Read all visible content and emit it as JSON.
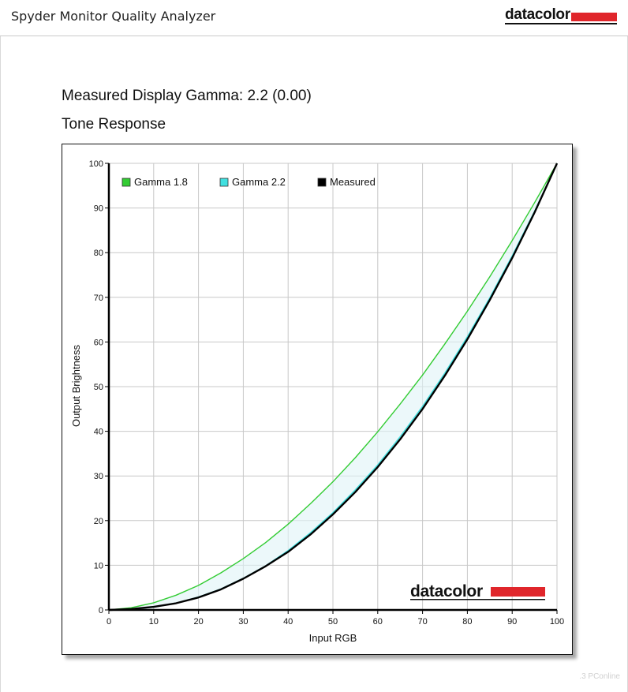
{
  "app": {
    "title": "Spyder Monitor Quality Analyzer",
    "brand": "datacolor"
  },
  "report": {
    "gamma_heading": "Measured Display Gamma: 2.2 (0.00)",
    "section_title": "Tone Response"
  },
  "chart_data": {
    "type": "line",
    "xlabel": "Input RGB",
    "ylabel": "Output Brightness",
    "xlim": [
      0,
      100
    ],
    "ylim": [
      0,
      100
    ],
    "xticks": [
      0,
      10,
      20,
      30,
      40,
      50,
      60,
      70,
      80,
      90,
      100
    ],
    "yticks": [
      0,
      10,
      20,
      30,
      40,
      50,
      60,
      70,
      80,
      90,
      100
    ],
    "grid": true,
    "legend_position": "top-left",
    "watermark_logo": "datacolor",
    "series": [
      {
        "name": "Gamma 1.8",
        "color": "#33cc33",
        "x": [
          0,
          5,
          10,
          15,
          20,
          25,
          30,
          35,
          40,
          45,
          50,
          55,
          60,
          65,
          70,
          75,
          80,
          85,
          90,
          95,
          100
        ],
        "values": [
          0,
          0.5,
          1.6,
          3.3,
          5.5,
          8.3,
          11.5,
          15.1,
          19.2,
          23.8,
          28.7,
          34.1,
          39.9,
          46.1,
          52.6,
          59.6,
          66.9,
          74.6,
          82.7,
          91.2,
          100
        ]
      },
      {
        "name": "Gamma 2.2",
        "color": "#40e0e0",
        "x": [
          0,
          5,
          10,
          15,
          20,
          25,
          30,
          35,
          40,
          45,
          50,
          55,
          60,
          65,
          70,
          75,
          80,
          85,
          90,
          95,
          100
        ],
        "values": [
          0,
          0.1,
          0.6,
          1.5,
          2.9,
          4.7,
          7.1,
          9.9,
          13.3,
          17.3,
          21.8,
          26.9,
          32.5,
          38.8,
          45.6,
          53.1,
          61.2,
          69.9,
          79.3,
          89.3,
          100
        ]
      },
      {
        "name": "Measured",
        "color": "#000000",
        "x": [
          0,
          5,
          10,
          15,
          20,
          25,
          30,
          35,
          40,
          45,
          50,
          55,
          60,
          65,
          70,
          75,
          80,
          85,
          90,
          95,
          100
        ],
        "values": [
          0,
          0.2,
          0.7,
          1.5,
          2.8,
          4.6,
          7.0,
          9.8,
          13.0,
          16.9,
          21.4,
          26.4,
          32.0,
          38.2,
          45.0,
          52.5,
          60.6,
          69.4,
          78.8,
          89.0,
          100
        ]
      }
    ]
  },
  "footer": {
    "watermark": ".3 PConline"
  }
}
